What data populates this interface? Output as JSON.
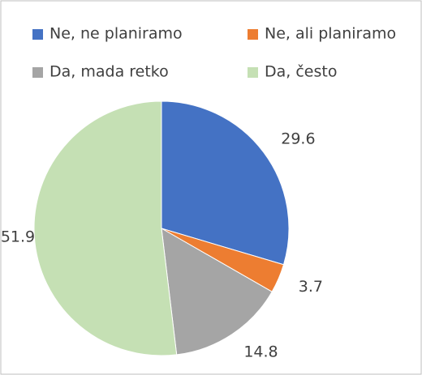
{
  "chart_data": {
    "type": "pie",
    "categories": [
      "Ne, ne planiramo",
      "Ne, ali planiramo",
      "Da, mada retko",
      "Da, često"
    ],
    "values": [
      29.6,
      3.7,
      14.8,
      51.9
    ],
    "colors": [
      "#4472c4",
      "#ed7d31",
      "#a5a5a5",
      "#c5e0b4"
    ],
    "legend": "top"
  }
}
